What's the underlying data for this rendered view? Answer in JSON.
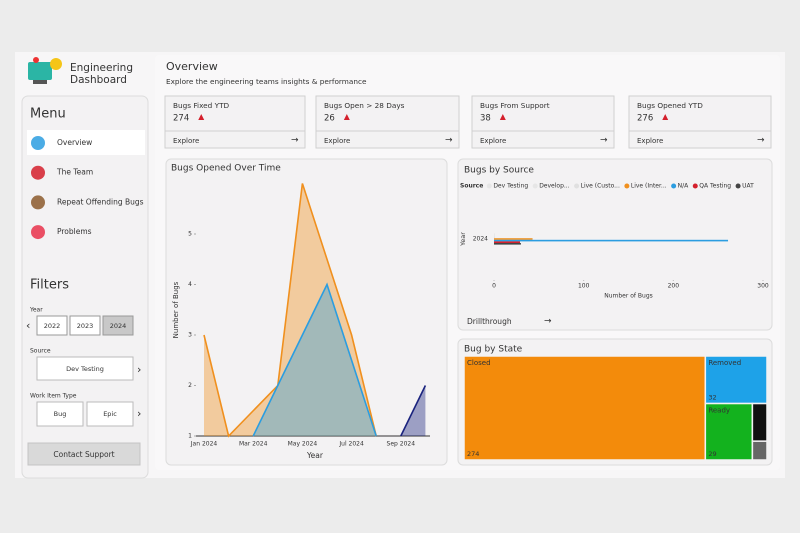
{
  "header": {
    "app_title_lines": [
      "Engineering",
      "Dashboard"
    ]
  },
  "menu": {
    "title": "Menu",
    "items": [
      "Overview",
      "The Team",
      "Repeat Offending Bugs",
      "Problems"
    ]
  },
  "filters": {
    "title": "Filters",
    "year_label": "Year",
    "years": [
      "2022",
      "2023",
      "2024"
    ],
    "source_label": "Source",
    "source_value": "Dev Testing",
    "work_item_label": "Work Item Type",
    "work_items": [
      "Bug",
      "Epic"
    ],
    "button": "Contact Support"
  },
  "overview": {
    "title": "Overview",
    "subtitle": "Explore the engineering teams insights & performance"
  },
  "kpis": [
    {
      "label": "Bugs Fixed YTD",
      "value": 274,
      "link": "Explore"
    },
    {
      "label": "Bugs Open > 28 Days",
      "value": 26,
      "link": "Explore"
    },
    {
      "label": "Bugs From Support",
      "value": 38,
      "link": "Explore"
    },
    {
      "label": "Bugs Opened YTD",
      "value": 276,
      "link": "Explore"
    }
  ],
  "chart_data": [
    {
      "type": "area",
      "title": "Bugs Opened Over Time",
      "x_label": "Year",
      "y_label": "Number of Bugs",
      "categories": [
        "Jan 2024",
        null,
        "Mar 2024",
        null,
        "May 2024",
        null,
        "Jul 2024",
        null,
        "Sep 2024",
        null
      ],
      "series": [
        {
          "color": "#f0901e",
          "values": [
            3,
            1,
            1.5,
            2,
            6,
            4.5,
            3,
            1,
            null,
            null
          ]
        },
        {
          "color": "#2b9de0",
          "values": [
            null,
            null,
            1,
            2,
            3,
            4,
            2.5,
            1,
            null,
            null
          ]
        },
        {
          "color": "#1a237e",
          "values": [
            null,
            null,
            null,
            null,
            null,
            null,
            null,
            null,
            1,
            2
          ]
        }
      ],
      "ylim": [
        1,
        6
      ],
      "yticks": [
        1,
        2,
        3,
        4,
        5
      ]
    },
    {
      "type": "hbar",
      "title": "Bugs by Source",
      "legend_title": "Source",
      "x_label": "Number of Bugs",
      "y_label": "Year",
      "categories": [
        "2024"
      ],
      "series": [
        {
          "name": "Dev Testing",
          "color": "#e6e6e6",
          "values": [
            1
          ]
        },
        {
          "name": "Develop...",
          "color": "#e6e6e6",
          "values": [
            1
          ]
        },
        {
          "name": "Live (Custo...",
          "color": "#e0e0e0",
          "values": [
            1
          ]
        },
        {
          "name": "Live (Inter...",
          "color": "#f0901e",
          "values": [
            43
          ]
        },
        {
          "name": "N/A",
          "color": "#2b9de0",
          "values": [
            261
          ]
        },
        {
          "name": "QA Testing",
          "color": "#d4202c",
          "values": [
            29
          ]
        },
        {
          "name": "UAT",
          "color": "#444444",
          "values": [
            30
          ]
        }
      ],
      "xlim": [
        0,
        300
      ],
      "xticks": [
        0,
        100,
        200,
        300
      ],
      "link": "Drillthrough"
    },
    {
      "type": "treemap",
      "title": "Bug by State",
      "categories": [
        "Closed",
        "Removed",
        "Ready",
        null,
        null
      ],
      "values": [
        274,
        32,
        29,
        6,
        3
      ],
      "colors": [
        "#f38b0b",
        "#1ea2e8",
        "#13b21e",
        "#111111",
        "#666666"
      ]
    }
  ]
}
